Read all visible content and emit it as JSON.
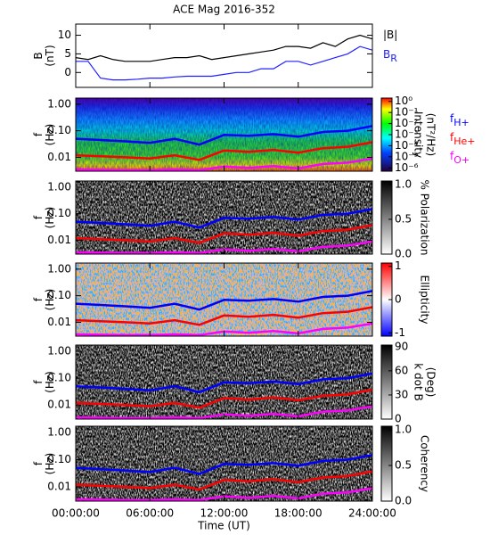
{
  "chart_data": [
    {
      "type": "line",
      "title": "ACE Mag 2016-352",
      "ylabel": [
        "B",
        "(nT)"
      ],
      "xlim": [
        0,
        24
      ],
      "ylim": [
        -4,
        13
      ],
      "yticks": [
        0,
        5,
        10
      ],
      "x": [
        0,
        1,
        2,
        3,
        4,
        5,
        6,
        7,
        8,
        9,
        10,
        11,
        12,
        13,
        14,
        15,
        16,
        17,
        18,
        19,
        20,
        21,
        22,
        23,
        24
      ],
      "series": [
        {
          "name": "|B|",
          "color": "#000000",
          "values": [
            4,
            3.5,
            4.5,
            3.5,
            3,
            3,
            3,
            3.5,
            4,
            4,
            4.5,
            3.5,
            4,
            4.5,
            5,
            5.5,
            6,
            7,
            7,
            6.5,
            8,
            7,
            9,
            10,
            9
          ]
        },
        {
          "name": "B",
          "subscript": "R",
          "color": "#2020ff",
          "values": [
            3,
            3,
            -1.5,
            -2,
            -2,
            -1.8,
            -1.5,
            -1.5,
            -1.2,
            -1,
            -1,
            -1,
            -0.5,
            0,
            0,
            1,
            1,
            3,
            3,
            2,
            3,
            4,
            5,
            7,
            6
          ]
        }
      ]
    },
    {
      "type": "spectrogram",
      "colormap": "rainbow",
      "ylabel": [
        "f",
        "(Hz)"
      ],
      "ylog": true,
      "xlim": [
        0,
        24
      ],
      "ylim": [
        0.003,
        1.7
      ],
      "yticks": [
        {
          "value": 1,
          "label": "1.00"
        },
        {
          "value": 0.1,
          "label": "0.10"
        },
        {
          "value": 0.01,
          "label": "0.01"
        }
      ],
      "colorbar_label": [
        "Intensity",
        "(nT²/Hz)"
      ],
      "clog": true,
      "clim": [
        5e-07,
        2
      ],
      "cticks": [
        {
          "value": 1,
          "label": "10⁰"
        },
        {
          "value": 0.1,
          "label": "10⁻¹"
        },
        {
          "value": 0.01,
          "label": "10⁻²"
        },
        {
          "value": 0.001,
          "label": "10⁻³"
        },
        {
          "value": 0.0001,
          "label": "10⁻⁴"
        },
        {
          "value": 1e-05,
          "label": "10⁻⁵"
        },
        {
          "value": 1e-06,
          "label": "10⁻⁶"
        }
      ],
      "x": [
        0,
        2,
        4,
        6,
        8,
        10,
        12,
        14,
        16,
        18,
        20,
        22,
        24
      ],
      "series": [
        {
          "name": "f",
          "subscript": "H+",
          "color": "#0000ff",
          "values": [
            0.05,
            0.045,
            0.04,
            0.035,
            0.05,
            0.03,
            0.07,
            0.065,
            0.075,
            0.06,
            0.09,
            0.1,
            0.15
          ]
        },
        {
          "name": "f",
          "subscript": "He+",
          "color": "#ff0000",
          "values": [
            0.012,
            0.011,
            0.01,
            0.009,
            0.012,
            0.008,
            0.018,
            0.016,
            0.019,
            0.015,
            0.022,
            0.025,
            0.037
          ]
        },
        {
          "name": "f",
          "subscript": "O+",
          "color": "#ff00ff",
          "values": [
            0.0035,
            0.0034,
            0.0033,
            0.0033,
            0.0035,
            0.0033,
            0.0045,
            0.004,
            0.0047,
            0.0038,
            0.0056,
            0.0063,
            0.009
          ]
        }
      ]
    },
    {
      "type": "spectrogram",
      "colormap": "gray",
      "ylabel": [
        "f",
        "(Hz)"
      ],
      "ylog": true,
      "xlim": [
        0,
        24
      ],
      "ylim": [
        0.003,
        1.7
      ],
      "yticks": [
        {
          "value": 1,
          "label": "1.00"
        },
        {
          "value": 0.1,
          "label": "0.10"
        },
        {
          "value": 0.01,
          "label": "0.01"
        }
      ],
      "colorbar_label": [
        "% Polarization"
      ],
      "clim": [
        0,
        1.05
      ],
      "cticks": [
        {
          "value": 0,
          "label": "0.0"
        },
        {
          "value": 0.5,
          "label": "0.5"
        },
        {
          "value": 1,
          "label": "1.0"
        }
      ],
      "x": [
        0,
        2,
        4,
        6,
        8,
        10,
        12,
        14,
        16,
        18,
        20,
        22,
        24
      ],
      "series": [
        {
          "color": "#0000ff",
          "values": [
            0.05,
            0.045,
            0.04,
            0.035,
            0.05,
            0.03,
            0.07,
            0.065,
            0.075,
            0.06,
            0.09,
            0.1,
            0.15
          ]
        },
        {
          "color": "#ff0000",
          "values": [
            0.012,
            0.011,
            0.01,
            0.009,
            0.012,
            0.008,
            0.018,
            0.016,
            0.019,
            0.015,
            0.022,
            0.025,
            0.037
          ]
        },
        {
          "color": "#ff00ff",
          "values": [
            0.0035,
            0.0034,
            0.0033,
            0.0033,
            0.0035,
            0.0033,
            0.0045,
            0.004,
            0.0047,
            0.0038,
            0.0056,
            0.0063,
            0.009
          ]
        }
      ]
    },
    {
      "type": "spectrogram",
      "colormap": "diverging",
      "ylabel": [
        "f",
        "(Hz)"
      ],
      "ylog": true,
      "xlim": [
        0,
        24
      ],
      "ylim": [
        0.003,
        1.7
      ],
      "yticks": [
        {
          "value": 1,
          "label": "1.00"
        },
        {
          "value": 0.1,
          "label": "0.10"
        },
        {
          "value": 0.01,
          "label": "0.01"
        }
      ],
      "colorbar_label": [
        "Ellipticity"
      ],
      "clim": [
        -1.1,
        1.1
      ],
      "cticks": [
        -1,
        0,
        1
      ],
      "x": [
        0,
        2,
        4,
        6,
        8,
        10,
        12,
        14,
        16,
        18,
        20,
        22,
        24
      ],
      "series": [
        {
          "color": "#0000ff",
          "values": [
            0.05,
            0.045,
            0.04,
            0.035,
            0.05,
            0.03,
            0.07,
            0.065,
            0.075,
            0.06,
            0.09,
            0.1,
            0.15
          ]
        },
        {
          "color": "#ff0000",
          "values": [
            0.012,
            0.011,
            0.01,
            0.009,
            0.012,
            0.008,
            0.018,
            0.016,
            0.019,
            0.015,
            0.022,
            0.025,
            0.037
          ]
        },
        {
          "color": "#ff00ff",
          "values": [
            0.0035,
            0.0034,
            0.0033,
            0.0033,
            0.0035,
            0.0033,
            0.0045,
            0.004,
            0.0047,
            0.0038,
            0.0056,
            0.0063,
            0.009
          ]
        }
      ]
    },
    {
      "type": "spectrogram",
      "colormap": "gray",
      "ylabel": [
        "f",
        "(Hz)"
      ],
      "ylog": true,
      "xlim": [
        0,
        24
      ],
      "ylim": [
        0.003,
        1.7
      ],
      "yticks": [
        {
          "value": 1,
          "label": "1.00"
        },
        {
          "value": 0.1,
          "label": "0.10"
        },
        {
          "value": 0.01,
          "label": "0.01"
        }
      ],
      "colorbar_label": [
        "k dot B",
        "(Deg)"
      ],
      "clim": [
        0,
        92
      ],
      "cticks": [
        0,
        30,
        60,
        90
      ],
      "x": [
        0,
        2,
        4,
        6,
        8,
        10,
        12,
        14,
        16,
        18,
        20,
        22,
        24
      ],
      "series": [
        {
          "color": "#0000ff",
          "values": [
            0.05,
            0.045,
            0.04,
            0.035,
            0.05,
            0.03,
            0.07,
            0.065,
            0.075,
            0.06,
            0.09,
            0.1,
            0.15
          ]
        },
        {
          "color": "#ff0000",
          "values": [
            0.012,
            0.011,
            0.01,
            0.009,
            0.012,
            0.008,
            0.018,
            0.016,
            0.019,
            0.015,
            0.022,
            0.025,
            0.037
          ]
        },
        {
          "color": "#ff00ff",
          "values": [
            0.0035,
            0.0034,
            0.0033,
            0.0033,
            0.0035,
            0.0033,
            0.0045,
            0.004,
            0.0047,
            0.0038,
            0.0056,
            0.0063,
            0.009
          ]
        }
      ]
    },
    {
      "type": "spectrogram",
      "colormap": "gray",
      "ylabel": [
        "f",
        "(Hz)"
      ],
      "ylog": true,
      "xlim": [
        0,
        24
      ],
      "ylim": [
        0.003,
        1.7
      ],
      "yticks": [
        {
          "value": 1,
          "label": "1.00"
        },
        {
          "value": 0.1,
          "label": "0.10"
        },
        {
          "value": 0.01,
          "label": "0.01"
        }
      ],
      "colorbar_label": [
        "Coherency"
      ],
      "clim": [
        0,
        1.05
      ],
      "cticks": [
        {
          "value": 0,
          "label": "0.0"
        },
        {
          "value": 0.5,
          "label": "0.5"
        },
        {
          "value": 1,
          "label": "1.0"
        }
      ],
      "x": [
        0,
        2,
        4,
        6,
        8,
        10,
        12,
        14,
        16,
        18,
        20,
        22,
        24
      ],
      "xticks": [
        {
          "value": 0,
          "label": "00:00:00"
        },
        {
          "value": 6,
          "label": "06:00:00"
        },
        {
          "value": 12,
          "label": "12:00:00"
        },
        {
          "value": 18,
          "label": "18:00:00"
        },
        {
          "value": 24,
          "label": "24:00:00"
        }
      ],
      "xlabel": "Time (UT)",
      "series": [
        {
          "color": "#0000ff",
          "values": [
            0.05,
            0.045,
            0.04,
            0.035,
            0.05,
            0.03,
            0.07,
            0.065,
            0.075,
            0.06,
            0.09,
            0.1,
            0.15
          ]
        },
        {
          "color": "#ff0000",
          "values": [
            0.012,
            0.011,
            0.01,
            0.009,
            0.012,
            0.008,
            0.018,
            0.016,
            0.019,
            0.015,
            0.022,
            0.025,
            0.037
          ]
        },
        {
          "color": "#ff00ff",
          "values": [
            0.0035,
            0.0034,
            0.0033,
            0.0033,
            0.0035,
            0.0033,
            0.0045,
            0.004,
            0.0047,
            0.0038,
            0.0056,
            0.0063,
            0.009
          ]
        }
      ]
    }
  ]
}
